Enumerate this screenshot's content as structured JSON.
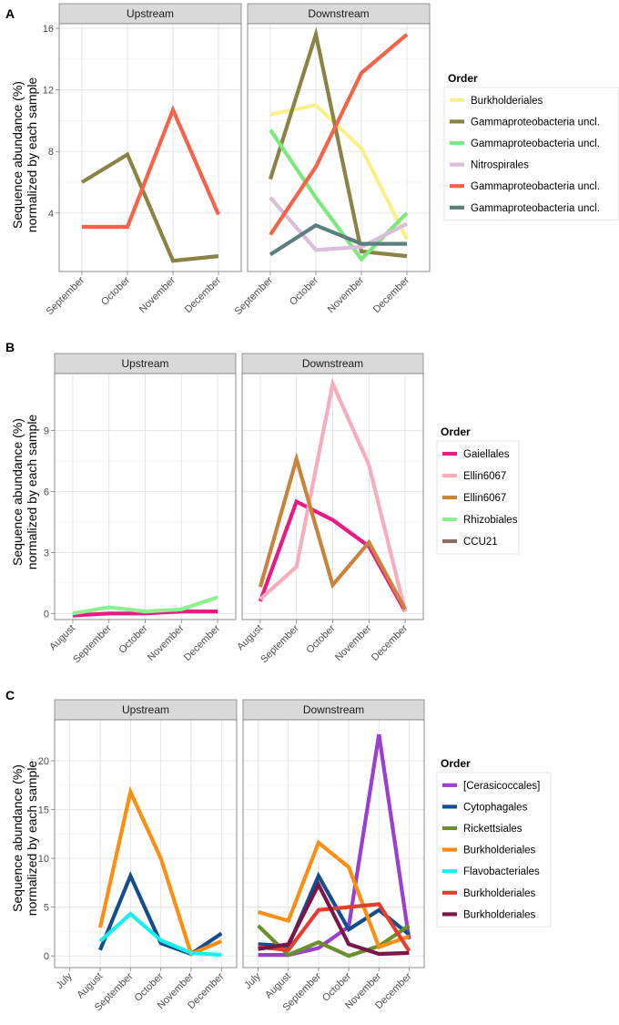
{
  "y_axis_title_line1": "Sequence abundance (%)",
  "y_axis_title_line2": "normalized by each sample",
  "chart_data": [
    {
      "panel": "A",
      "type": "line",
      "facets": [
        "Upstream",
        "Downstream"
      ],
      "categories": [
        "September",
        "October",
        "November",
        "December"
      ],
      "yticks": [
        4,
        8,
        12,
        16
      ],
      "ylim": [
        0.2,
        16.3
      ],
      "legend_title": "Order",
      "series": [
        {
          "name": "Burkholderiales",
          "color": "#f9f08a",
          "values": {
            "Downstream": [
              10.4,
              11.0,
              8.2,
              2.3
            ]
          }
        },
        {
          "name": "Gammaproteobacteria uncl.",
          "color": "#8b8344",
          "values": {
            "Upstream": [
              6.0,
              7.8,
              0.9,
              1.2
            ],
            "Downstream": [
              6.2,
              15.6,
              1.5,
              1.2
            ]
          }
        },
        {
          "name": "Gammaproteobacteria uncl.",
          "color": "#7de87f",
          "values": {
            "Downstream": [
              9.4,
              5.0,
              1.0,
              4.0
            ]
          }
        },
        {
          "name": "Nitrospirales",
          "color": "#dbbcd9",
          "values": {
            "Downstream": [
              5.0,
              1.6,
              1.8,
              3.3
            ]
          }
        },
        {
          "name": "Gammaproteobacteria uncl.",
          "color": "#f6634a",
          "values": {
            "Upstream": [
              3.1,
              3.1,
              10.7,
              3.9
            ],
            "Downstream": [
              2.6,
              7.0,
              13.1,
              15.6
            ]
          }
        },
        {
          "name": "Gammaproteobacteria uncl.",
          "color": "#5b7e7f",
          "values": {
            "Downstream": [
              1.3,
              3.2,
              2.0,
              2.0
            ]
          }
        }
      ]
    },
    {
      "panel": "B",
      "type": "line",
      "facets": [
        "Upstream",
        "Downstream"
      ],
      "categories": [
        "August",
        "September",
        "October",
        "November",
        "December"
      ],
      "yticks": [
        0,
        3,
        6,
        9
      ],
      "ylim": [
        -0.3,
        11.8
      ],
      "legend_title": "Order",
      "series": [
        {
          "name": "Gaiellales",
          "color": "#ea1a84",
          "values": {
            "Upstream": [
              -0.1,
              0.0,
              0.0,
              0.1,
              0.1
            ],
            "Downstream": [
              0.6,
              5.5,
              4.6,
              3.3,
              0.1
            ]
          }
        },
        {
          "name": "Ellin6067",
          "color": "#f7adbd",
          "values": {
            "Downstream": [
              0.7,
              2.3,
              11.3,
              7.3,
              0.1
            ]
          }
        },
        {
          "name": "Ellin6067",
          "color": "#c8833f",
          "values": {
            "Downstream": [
              1.3,
              7.6,
              1.4,
              3.5,
              0.2
            ]
          }
        },
        {
          "name": "Rhizobiales",
          "color": "#8cf08f",
          "values": {
            "Upstream": [
              0.0,
              0.3,
              0.1,
              0.2,
              0.8
            ]
          }
        },
        {
          "name": "CCU21",
          "color": "#8a6f5e",
          "values": {}
        }
      ]
    },
    {
      "panel": "C",
      "type": "line",
      "facets": [
        "Upstream",
        "Downstream"
      ],
      "categories": [
        "July",
        "August",
        "September",
        "October",
        "November",
        "December"
      ],
      "yticks": [
        0,
        5,
        10,
        15,
        20
      ],
      "ylim": [
        -1.2,
        24.2
      ],
      "legend_title": "Order",
      "series": [
        {
          "name": "[Cerasicoccales]",
          "color": "#9a3fcf",
          "values": {
            "Downstream": [
              0.1,
              0.1,
              0.8,
              3.0,
              22.7,
              1.7
            ]
          }
        },
        {
          "name": "Cytophagales",
          "color": "#164d8c",
          "values": {
            "Upstream": [
              null,
              0.6,
              8.2,
              1.3,
              0.2,
              2.3
            ],
            "Downstream": [
              1.2,
              1.0,
              8.2,
              2.7,
              4.7,
              2.2
            ]
          }
        },
        {
          "name": "Rickettsiales",
          "color": "#6b8e2f",
          "values": {
            "Downstream": [
              3.1,
              0.1,
              1.4,
              0.0,
              1.0,
              3.1
            ]
          }
        },
        {
          "name": "Burkholderiales",
          "color": "#fc8f12",
          "values": {
            "Upstream": [
              null,
              2.9,
              16.8,
              10.0,
              0.2,
              1.5
            ],
            "Downstream": [
              4.5,
              3.6,
              11.6,
              9.1,
              0.9,
              2.0
            ]
          }
        },
        {
          "name": "Flavobacteriales",
          "color": "#18f0f0",
          "values": {
            "Upstream": [
              null,
              1.5,
              4.3,
              1.6,
              0.3,
              0.1
            ]
          }
        },
        {
          "name": "Burkholderiales",
          "color": "#e53e2f",
          "values": {
            "Downstream": [
              0.9,
              0.6,
              4.7,
              5.0,
              5.3,
              0.5
            ]
          }
        },
        {
          "name": "Burkholderiales",
          "color": "#7a1746",
          "values": {
            "Downstream": [
              0.7,
              1.2,
              7.3,
              1.2,
              0.2,
              0.3
            ]
          }
        }
      ]
    }
  ]
}
